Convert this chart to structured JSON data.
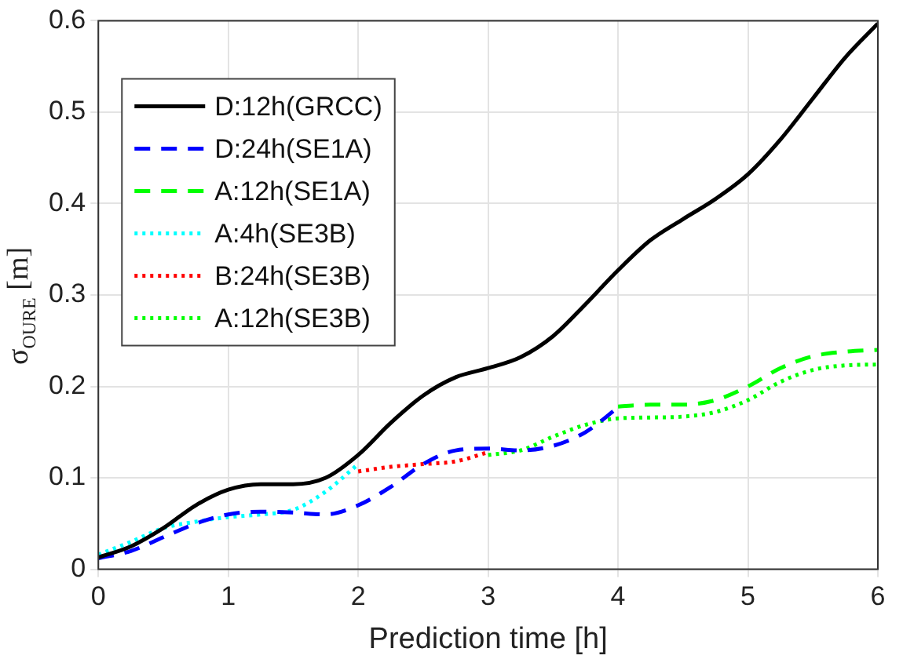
{
  "chart_data": {
    "type": "line",
    "xlabel": "Prediction time [h]",
    "ylabel": "σ$_{OURE}$ [m]",
    "xlim": [
      0,
      6
    ],
    "xticks": [
      0,
      1,
      2,
      3,
      4,
      5,
      6
    ],
    "ylim": [
      0,
      0.6
    ],
    "yticks": [
      0,
      0.1,
      0.2,
      0.3,
      0.4,
      0.5,
      0.6
    ],
    "grid": true,
    "legend": "top left",
    "marker": "none",
    "series": [
      {
        "name": "D:12h(GRCC)",
        "color": "#000000",
        "line_style": "solid",
        "x": [
          0,
          0.25,
          0.5,
          0.75,
          1,
          1.25,
          1.5,
          1.75,
          2,
          2.25,
          2.5,
          2.75,
          3,
          3.25,
          3.5,
          3.75,
          4,
          4.25,
          4.5,
          4.75,
          5,
          5.25,
          5.5,
          5.75,
          6
        ],
        "values": [
          0.013,
          0.025,
          0.045,
          0.07,
          0.087,
          0.093,
          0.093,
          0.1,
          0.125,
          0.16,
          0.19,
          0.21,
          0.22,
          0.232,
          0.255,
          0.29,
          0.327,
          0.36,
          0.383,
          0.405,
          0.432,
          0.47,
          0.515,
          0.56,
          0.597
        ]
      },
      {
        "name": "D:24h(SE1A)",
        "color": "#0000ff",
        "line_style": "dashed",
        "x": [
          0,
          0.25,
          0.5,
          0.75,
          1,
          1.25,
          1.5,
          1.75,
          2,
          2.25,
          2.5,
          2.75,
          3,
          3.25,
          3.5,
          3.75,
          4
        ],
        "values": [
          0.012,
          0.02,
          0.035,
          0.05,
          0.06,
          0.063,
          0.062,
          0.06,
          0.07,
          0.09,
          0.115,
          0.13,
          0.132,
          0.13,
          0.135,
          0.15,
          0.177
        ]
      },
      {
        "name": "A:12h(SE1A)",
        "color": "#00ff00",
        "line_style": "dashed",
        "x": [
          4,
          4.25,
          4.5,
          4.75,
          5,
          5.25,
          5.5,
          5.75,
          6
        ],
        "values": [
          0.178,
          0.18,
          0.18,
          0.185,
          0.2,
          0.22,
          0.233,
          0.238,
          0.24
        ]
      },
      {
        "name": "A:4h(SE3B)",
        "color": "#00ffff",
        "line_style": "dotted",
        "x": [
          0,
          0.25,
          0.5,
          0.75,
          1,
          1.25,
          1.5,
          1.75,
          2
        ],
        "values": [
          0.016,
          0.03,
          0.045,
          0.052,
          0.057,
          0.06,
          0.065,
          0.085,
          0.115
        ]
      },
      {
        "name": "B:24h(SE3B)",
        "color": "#ff0000",
        "line_style": "dotted",
        "x": [
          2,
          2.25,
          2.5,
          2.75,
          3
        ],
        "values": [
          0.107,
          0.112,
          0.115,
          0.118,
          0.128
        ]
      },
      {
        "name": "A:12h(SE3B)",
        "color": "#00ff00",
        "line_style": "dotted",
        "x": [
          3,
          3.25,
          3.5,
          3.75,
          4,
          4.25,
          4.5,
          4.75,
          5,
          5.25,
          5.5,
          5.75,
          6
        ],
        "values": [
          0.125,
          0.13,
          0.145,
          0.158,
          0.165,
          0.166,
          0.167,
          0.172,
          0.185,
          0.205,
          0.218,
          0.223,
          0.224
        ]
      }
    ]
  }
}
